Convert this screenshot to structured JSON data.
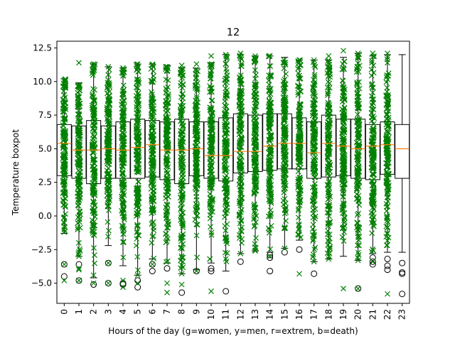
{
  "chart_data": {
    "type": "box",
    "title": "12",
    "xlabel": "Hours of the day (g=women, y=men, r=extrem, b=death)",
    "ylabel": "Temperature boxpot",
    "ylim": [
      -6.5,
      13.0
    ],
    "yticks": [
      -5.0,
      -2.5,
      0.0,
      2.5,
      5.0,
      7.5,
      10.0,
      12.5
    ],
    "ytick_labels": [
      "−5.0",
      "−2.5",
      "0.0",
      "2.5",
      "5.0",
      "7.5",
      "10.0",
      "12.5"
    ],
    "categories": [
      "0",
      "1",
      "2",
      "3",
      "4",
      "5",
      "6",
      "7",
      "8",
      "9",
      "10",
      "11",
      "12",
      "13",
      "14",
      "15",
      "16",
      "17",
      "18",
      "19",
      "20",
      "21",
      "22",
      "23"
    ],
    "colors": {
      "box": "#000000",
      "median": "#ff7f0e",
      "points": "#008000",
      "flier": "#000000"
    },
    "boxes": [
      {
        "hour": "0",
        "q1": 3.0,
        "median": 5.4,
        "q3": 6.8,
        "whislo": -1.3,
        "whishi": 10.2,
        "fliers": [
          -3.6,
          -4.5
        ]
      },
      {
        "hour": "1",
        "q1": 2.8,
        "median": 4.9,
        "q3": 6.7,
        "whislo": -3.0,
        "whishi": 9.9,
        "fliers": [
          -3.6,
          -4.8
        ]
      },
      {
        "hour": "2",
        "q1": 2.4,
        "median": 4.9,
        "q3": 7.1,
        "whislo": -4.6,
        "whishi": 11.3,
        "fliers": [
          -5.1
        ]
      },
      {
        "hour": "3",
        "q1": 2.8,
        "median": 5.0,
        "q3": 6.7,
        "whislo": -2.2,
        "whishi": 11.1,
        "fliers": [
          -3.5,
          -5.0
        ]
      },
      {
        "hour": "4",
        "q1": 2.8,
        "median": 4.9,
        "q3": 7.0,
        "whislo": -3.7,
        "whishi": 11.0,
        "fliers": [
          -5.0,
          -5.1
        ]
      },
      {
        "hour": "5",
        "q1": 2.8,
        "median": 5.1,
        "q3": 7.2,
        "whislo": -4.4,
        "whishi": 11.3,
        "fliers": [
          -4.8,
          -5.3
        ]
      },
      {
        "hour": "6",
        "q1": 2.9,
        "median": 5.3,
        "q3": 7.1,
        "whislo": -3.2,
        "whishi": 11.3,
        "fliers": [
          -3.6,
          -4.1
        ]
      },
      {
        "hour": "7",
        "q1": 2.7,
        "median": 4.9,
        "q3": 7.0,
        "whislo": -3.5,
        "whishi": 11.2,
        "fliers": [
          -3.9
        ]
      },
      {
        "hour": "8",
        "q1": 2.4,
        "median": 4.9,
        "q3": 7.2,
        "whislo": -4.3,
        "whishi": 11.0,
        "fliers": [
          -5.7
        ]
      },
      {
        "hour": "9",
        "q1": 3.0,
        "median": 5.0,
        "q3": 7.0,
        "whislo": -4.0,
        "whishi": 11.0,
        "fliers": [
          -4.1
        ]
      },
      {
        "hour": "10",
        "q1": 2.8,
        "median": 4.5,
        "q3": 7.0,
        "whislo": -3.5,
        "whishi": 11.4,
        "fliers": [
          -3.9,
          -4.1
        ]
      },
      {
        "hour": "11",
        "q1": 2.6,
        "median": 4.5,
        "q3": 7.3,
        "whislo": -4.1,
        "whishi": 12.0,
        "fliers": [
          -5.6
        ]
      },
      {
        "hour": "12",
        "q1": 3.2,
        "median": 4.8,
        "q3": 7.6,
        "whislo": -2.8,
        "whishi": 12.0,
        "fliers": [
          -3.4
        ]
      },
      {
        "hour": "13",
        "q1": 3.3,
        "median": 4.8,
        "q3": 7.5,
        "whislo": -2.6,
        "whishi": 11.9,
        "fliers": []
      },
      {
        "hour": "14",
        "q1": 3.4,
        "median": 5.2,
        "q3": 7.6,
        "whislo": -2.7,
        "whishi": 11.9,
        "fliers": [
          -2.9,
          -3.1,
          -4.1
        ]
      },
      {
        "hour": "15",
        "q1": 3.5,
        "median": 5.4,
        "q3": 7.6,
        "whislo": -2.4,
        "whishi": 11.8,
        "fliers": [
          -2.7
        ]
      },
      {
        "hour": "16",
        "q1": 3.5,
        "median": 5.4,
        "q3": 7.3,
        "whislo": -1.8,
        "whishi": 11.6,
        "fliers": [
          -2.5
        ]
      },
      {
        "hour": "17",
        "q1": 2.8,
        "median": 4.7,
        "q3": 7.0,
        "whislo": -3.4,
        "whishi": 11.6,
        "fliers": [
          -4.3
        ]
      },
      {
        "hour": "18",
        "q1": 2.9,
        "median": 5.4,
        "q3": 7.5,
        "whislo": -3.2,
        "whishi": 11.6,
        "fliers": []
      },
      {
        "hour": "19",
        "q1": 3.0,
        "median": 5.2,
        "q3": 7.2,
        "whislo": -3.0,
        "whishi": 11.8,
        "fliers": []
      },
      {
        "hour": "20",
        "q1": 2.8,
        "median": 5.0,
        "q3": 7.2,
        "whislo": -3.3,
        "whishi": 12.1,
        "fliers": [
          -5.4
        ]
      },
      {
        "hour": "21",
        "q1": 2.7,
        "median": 5.2,
        "q3": 6.8,
        "whislo": -2.8,
        "whishi": 11.9,
        "fliers": [
          -3.1,
          -3.4,
          -3.6
        ]
      },
      {
        "hour": "22",
        "q1": 3.1,
        "median": 5.3,
        "q3": 7.0,
        "whislo": -2.7,
        "whishi": 12.0,
        "fliers": [
          -3.2,
          -3.7,
          -4.0
        ]
      },
      {
        "hour": "23",
        "q1": 2.8,
        "median": 5.0,
        "q3": 6.8,
        "whislo": -2.7,
        "whishi": 12.0,
        "fliers": [
          -3.5,
          -4.2,
          -4.3,
          -5.8
        ]
      }
    ],
    "green_point_hours": [
      "0",
      "1",
      "2",
      "3",
      "4",
      "5",
      "6",
      "7",
      "8",
      "9",
      "10",
      "11",
      "12",
      "13",
      "14",
      "15",
      "16",
      "17",
      "18",
      "19",
      "20",
      "21",
      "22"
    ],
    "outer_green_points": [
      {
        "hour": "0",
        "y": [
          10.1,
          9.0,
          -1.2,
          -3.6,
          -4.8
        ]
      },
      {
        "hour": "1",
        "y": [
          11.4,
          9.7,
          -3.0,
          -4.8,
          -4.0,
          -3.9
        ]
      },
      {
        "hour": "2",
        "y": [
          11.3,
          -5.0,
          -4.4
        ]
      },
      {
        "hour": "3",
        "y": [
          11.1,
          -5.0,
          -3.5
        ]
      },
      {
        "hour": "4",
        "y": [
          11.0,
          -5.3,
          -4.8
        ]
      },
      {
        "hour": "5",
        "y": [
          11.3,
          -5.0,
          -4.4
        ]
      },
      {
        "hour": "6",
        "y": [
          11.2,
          -3.6
        ]
      },
      {
        "hour": "7",
        "y": [
          11.1,
          -5.7,
          -5.0
        ]
      },
      {
        "hour": "8",
        "y": [
          11.2,
          -5.1,
          -4.3
        ]
      },
      {
        "hour": "9",
        "y": [
          11.3,
          -4.1
        ]
      },
      {
        "hour": "10",
        "y": [
          11.9,
          -5.6
        ]
      },
      {
        "hour": "11",
        "y": [
          12.0,
          -3.2
        ]
      },
      {
        "hour": "12",
        "y": [
          12.1,
          -2.8
        ]
      },
      {
        "hour": "13",
        "y": [
          11.9,
          -2.6
        ]
      },
      {
        "hour": "14",
        "y": [
          11.9,
          -3.0
        ]
      },
      {
        "hour": "15",
        "y": [
          11.4,
          -2.4
        ]
      },
      {
        "hour": "16",
        "y": [
          11.6,
          -4.3
        ]
      },
      {
        "hour": "17",
        "y": [
          11.6,
          -3.4
        ]
      },
      {
        "hour": "18",
        "y": [
          11.9,
          -3.2
        ]
      },
      {
        "hour": "19",
        "y": [
          12.3,
          -5.4
        ]
      },
      {
        "hour": "20",
        "y": [
          12.1,
          -5.4
        ]
      },
      {
        "hour": "21",
        "y": [
          12.1,
          -3.4
        ]
      },
      {
        "hour": "22",
        "y": [
          12.1,
          -5.8
        ]
      }
    ]
  }
}
